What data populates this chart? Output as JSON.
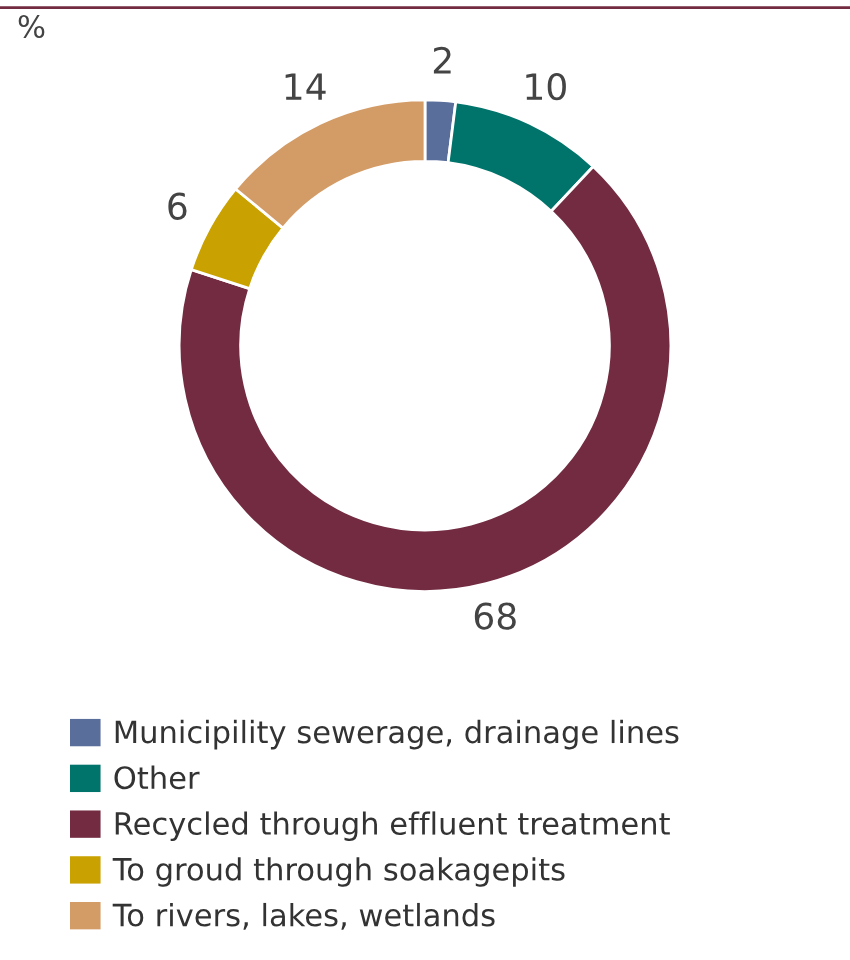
{
  "chart_data": {
    "type": "donut",
    "title": "%",
    "categories": [
      "Municipility sewerage, drainage lines",
      "Other",
      "Recycled through effluent treatment",
      "To groud through soakagepits",
      "To rivers, lakes, wetlands"
    ],
    "values": [
      2,
      10,
      68,
      6,
      14
    ],
    "colors": [
      "#5a6e9c",
      "#00736b",
      "#722b41",
      "#c9a100",
      "#d39b65"
    ],
    "data_labels": true,
    "legend": "bottom"
  }
}
